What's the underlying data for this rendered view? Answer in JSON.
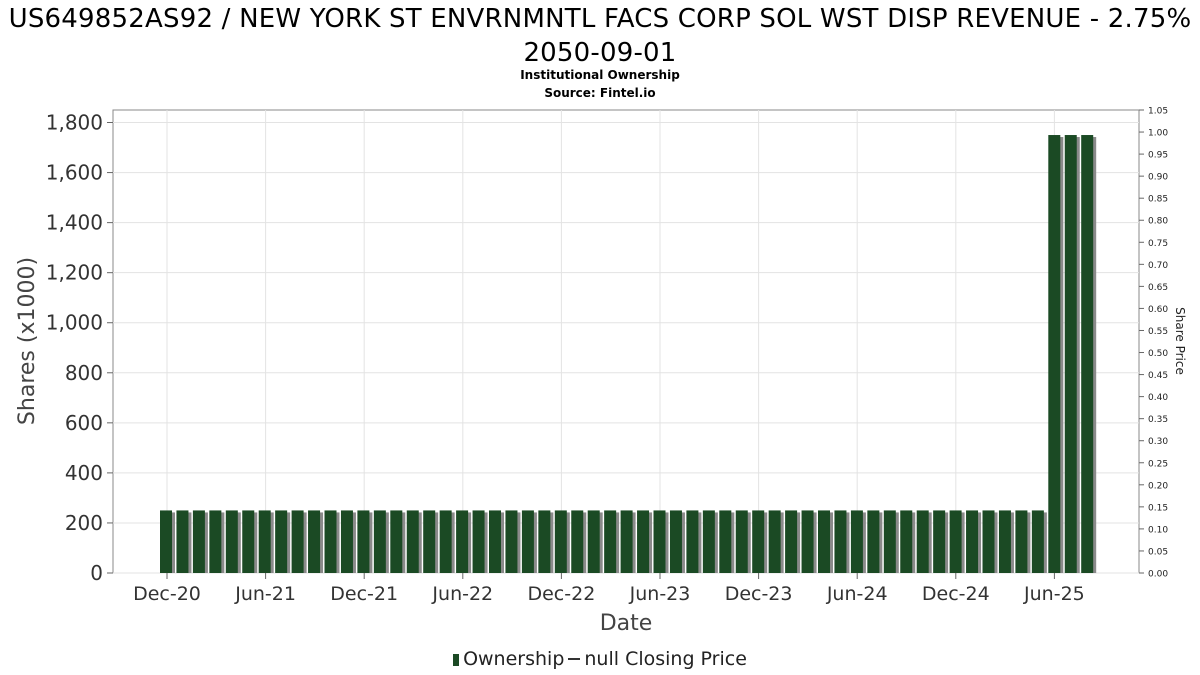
{
  "chart_data": {
    "type": "bar",
    "title": "US649852AS92 / NEW YORK ST ENVRNMNTL FACS CORP SOL WST DISP REVENUE - 2.75% 2050-09-01",
    "subtitle": "Institutional Ownership",
    "source": "Source: Fintel.io",
    "xlabel": "Date",
    "ylabel": "Shares (x1000)",
    "y2label": "Share Price",
    "ylim": [
      0,
      1850
    ],
    "y2lim": [
      0,
      1.05
    ],
    "yticks": [
      0,
      200,
      400,
      600,
      800,
      1000,
      1200,
      1400,
      1600,
      1800
    ],
    "ytick_labels": [
      "0",
      "200",
      "400",
      "600",
      "800",
      "1,000",
      "1,200",
      "1,400",
      "1,600",
      "1,800"
    ],
    "y2ticks": [
      "0.00",
      "0.05",
      "0.10",
      "0.15",
      "0.20",
      "0.25",
      "0.30",
      "0.35",
      "0.40",
      "0.45",
      "0.50",
      "0.55",
      "0.60",
      "0.65",
      "0.70",
      "0.75",
      "0.80",
      "0.85",
      "0.90",
      "0.95",
      "1.00",
      "1.05"
    ],
    "xtick_labels": [
      "Dec-20",
      "Jun-21",
      "Dec-21",
      "Jun-22",
      "Dec-22",
      "Jun-23",
      "Dec-23",
      "Jun-24",
      "Dec-24",
      "Jun-25"
    ],
    "grid": true,
    "legend_position": "bottom",
    "series": [
      {
        "name": "Ownership",
        "color": "#1b4a24",
        "values": [
          250,
          250,
          250,
          250,
          250,
          250,
          250,
          250,
          250,
          250,
          250,
          250,
          250,
          250,
          250,
          250,
          250,
          250,
          250,
          250,
          250,
          250,
          250,
          250,
          250,
          250,
          250,
          250,
          250,
          250,
          250,
          250,
          250,
          250,
          250,
          250,
          250,
          250,
          250,
          250,
          250,
          250,
          250,
          250,
          250,
          250,
          250,
          250,
          250,
          250,
          250,
          250,
          250,
          250,
          1750,
          1750,
          1750
        ]
      }
    ],
    "legend": {
      "ownership_label": "Ownership",
      "price_label": "null Closing Price"
    }
  }
}
